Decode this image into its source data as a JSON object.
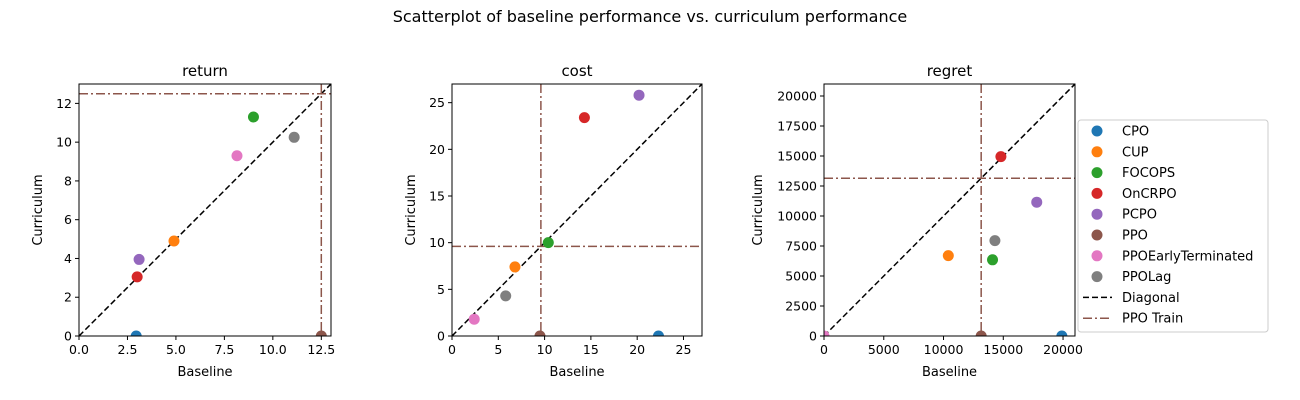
{
  "figure": {
    "suptitle": "Scatterplot of baseline performance vs. curriculum performance"
  },
  "legend": {
    "placement": "right",
    "entries": [
      {
        "label": "CPO",
        "kind": "marker",
        "color": "#1f77b4"
      },
      {
        "label": "CUP",
        "kind": "marker",
        "color": "#ff7f0e"
      },
      {
        "label": "FOCOPS",
        "kind": "marker",
        "color": "#2ca02c"
      },
      {
        "label": "OnCRPO",
        "kind": "marker",
        "color": "#d62728"
      },
      {
        "label": "PCPO",
        "kind": "marker",
        "color": "#9467bd"
      },
      {
        "label": "PPO",
        "kind": "marker",
        "color": "#8c564b"
      },
      {
        "label": "PPOEarlyTerminated",
        "kind": "marker",
        "color": "#e377c2"
      },
      {
        "label": "PPOLag",
        "kind": "marker",
        "color": "#7f7f7f"
      },
      {
        "label": "Diagonal",
        "kind": "dashed",
        "color": "#000000"
      },
      {
        "label": "PPO Train",
        "kind": "dashdot",
        "color": "#8c564b"
      }
    ]
  },
  "chart_data": [
    {
      "type": "scatter",
      "title": "return",
      "xlabel": "Baseline",
      "ylabel": "Curriculum",
      "xlim": [
        0,
        13
      ],
      "ylim": [
        0,
        13
      ],
      "xticks": [
        0,
        2.5,
        5,
        7.5,
        10,
        12.5
      ],
      "xtick_labels": [
        "0.0",
        "2.5",
        "5.0",
        "7.5",
        "10.0",
        "12.5"
      ],
      "yticks": [
        0,
        2,
        4,
        6,
        8,
        10,
        12
      ],
      "ytick_labels": [
        "0",
        "2",
        "4",
        "6",
        "8",
        "10",
        "12"
      ],
      "ppo_train": 12.5,
      "points": [
        {
          "name": "CPO",
          "x": 2.95,
          "y": 0.0,
          "color": "#1f77b4"
        },
        {
          "name": "CUP",
          "x": 4.9,
          "y": 4.9,
          "color": "#ff7f0e"
        },
        {
          "name": "FOCOPS",
          "x": 9.0,
          "y": 11.3,
          "color": "#2ca02c"
        },
        {
          "name": "OnCRPO",
          "x": 3.0,
          "y": 3.05,
          "color": "#d62728"
        },
        {
          "name": "PCPO",
          "x": 3.1,
          "y": 3.95,
          "color": "#9467bd"
        },
        {
          "name": "PPO",
          "x": 12.5,
          "y": 0.0,
          "color": "#8c564b"
        },
        {
          "name": "PPOEarlyTerminated",
          "x": 8.15,
          "y": 9.3,
          "color": "#e377c2"
        },
        {
          "name": "PPOLag",
          "x": 11.1,
          "y": 10.25,
          "color": "#7f7f7f"
        }
      ]
    },
    {
      "type": "scatter",
      "title": "cost",
      "xlabel": "Baseline",
      "ylabel": "Curriculum",
      "xlim": [
        0,
        27
      ],
      "ylim": [
        0,
        27
      ],
      "xticks": [
        0,
        5,
        10,
        15,
        20,
        25
      ],
      "xtick_labels": [
        "0",
        "5",
        "10",
        "15",
        "20",
        "25"
      ],
      "yticks": [
        0,
        5,
        10,
        15,
        20,
        25
      ],
      "ytick_labels": [
        "0",
        "5",
        "10",
        "15",
        "20",
        "25"
      ],
      "ppo_train": 9.6,
      "points": [
        {
          "name": "CPO",
          "x": 22.3,
          "y": 0.0,
          "color": "#1f77b4"
        },
        {
          "name": "CUP",
          "x": 6.8,
          "y": 7.4,
          "color": "#ff7f0e"
        },
        {
          "name": "FOCOPS",
          "x": 10.4,
          "y": 10.0,
          "color": "#2ca02c"
        },
        {
          "name": "OnCRPO",
          "x": 14.3,
          "y": 23.4,
          "color": "#d62728"
        },
        {
          "name": "PCPO",
          "x": 20.2,
          "y": 25.8,
          "color": "#9467bd"
        },
        {
          "name": "PPO",
          "x": 9.5,
          "y": 0.0,
          "color": "#8c564b"
        },
        {
          "name": "PPOEarlyTerminated",
          "x": 2.4,
          "y": 1.8,
          "color": "#e377c2"
        },
        {
          "name": "PPOLag",
          "x": 5.8,
          "y": 4.3,
          "color": "#7f7f7f"
        }
      ]
    },
    {
      "type": "scatter",
      "title": "regret",
      "xlabel": "Baseline",
      "ylabel": "Curriculum",
      "xlim": [
        0,
        21000
      ],
      "ylim": [
        0,
        21000
      ],
      "xticks": [
        0,
        5000,
        10000,
        15000,
        20000
      ],
      "xtick_labels": [
        "0",
        "5000",
        "10000",
        "15000",
        "20000"
      ],
      "yticks": [
        0,
        2500,
        5000,
        7500,
        10000,
        12500,
        15000,
        17500,
        20000
      ],
      "ytick_labels": [
        "0",
        "2500",
        "5000",
        "7500",
        "10000",
        "12500",
        "15000",
        "17500",
        "20000"
      ],
      "ppo_train": 13150,
      "points": [
        {
          "name": "CPO",
          "x": 19900,
          "y": 0,
          "color": "#1f77b4"
        },
        {
          "name": "CUP",
          "x": 10400,
          "y": 6700,
          "color": "#ff7f0e"
        },
        {
          "name": "FOCOPS",
          "x": 14100,
          "y": 6350,
          "color": "#2ca02c"
        },
        {
          "name": "OnCRPO",
          "x": 14800,
          "y": 14950,
          "color": "#d62728"
        },
        {
          "name": "PCPO",
          "x": 17800,
          "y": 11150,
          "color": "#9467bd"
        },
        {
          "name": "PPO",
          "x": 13150,
          "y": 0,
          "color": "#8c564b"
        },
        {
          "name": "PPOEarlyTerminated",
          "x": 0,
          "y": 0,
          "color": "#e377c2"
        },
        {
          "name": "PPOLag",
          "x": 14300,
          "y": 7950,
          "color": "#7f7f7f"
        }
      ]
    }
  ]
}
